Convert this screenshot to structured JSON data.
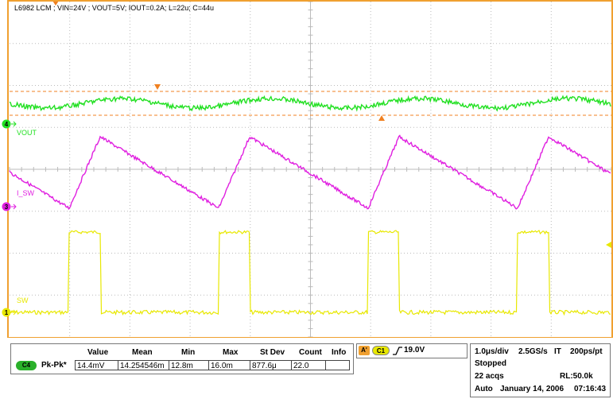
{
  "header": {
    "title": "L6982 LCM ; VIN=24V ; VOUT=5V; IOUT=0.2A; L=22u; C=44u"
  },
  "channels": [
    {
      "id": "4",
      "label": "VOUT",
      "color": "#22e022"
    },
    {
      "id": "3",
      "label": "I_SW",
      "color": "#e020e0"
    },
    {
      "id": "1",
      "label": "SW",
      "color": "#e8e800"
    }
  ],
  "colors": {
    "frame": "#f0a030",
    "grid": "#bbbbbb",
    "cursor": "#f08020"
  },
  "measurement": {
    "headers": [
      "Value",
      "Mean",
      "Min",
      "Max",
      "St Dev",
      "Count",
      "Info"
    ],
    "channel": "C4",
    "name": "Pk-Pk*",
    "values": [
      "14.4mV",
      "14.254546m",
      "12.8m",
      "16.0m",
      "877.6μ",
      "22.0",
      ""
    ]
  },
  "trigger": {
    "label": "A'",
    "channel": "C1",
    "slope": "rising",
    "level": "19.0V"
  },
  "acquisition": {
    "timebase": "1.0μs/div",
    "sample_rate": "2.5GS/s",
    "mode": "IT",
    "resolution": "200ps/pt",
    "state": "Stopped",
    "acqs": "22 acqs",
    "record_length": "RL:50.0k",
    "trigger_mode": "Auto",
    "date": "January 14, 2006",
    "time": "07:16:43"
  }
}
